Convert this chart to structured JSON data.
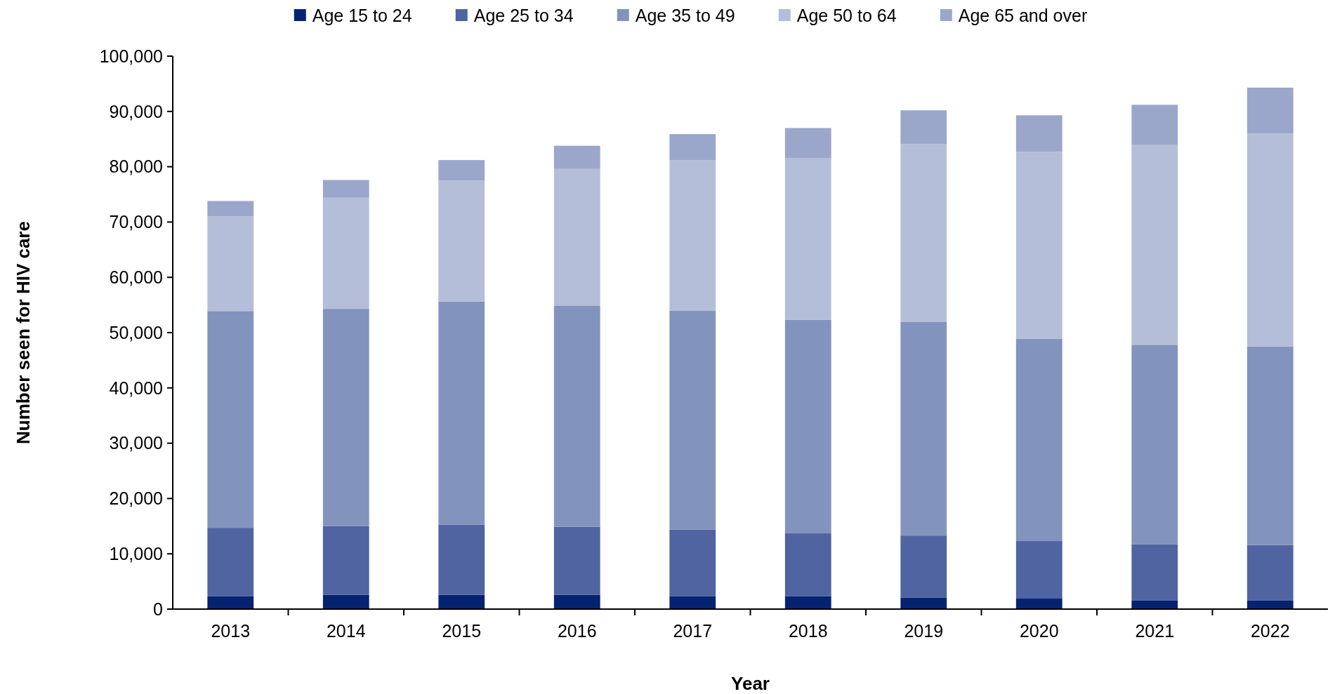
{
  "chart_data": {
    "type": "bar",
    "stacked": true,
    "xlabel": "Year",
    "ylabel": "Number seen for HIV care",
    "categories": [
      "2013",
      "2014",
      "2015",
      "2016",
      "2017",
      "2018",
      "2019",
      "2020",
      "2021",
      "2022"
    ],
    "series": [
      {
        "name": "Age 15 to 24",
        "color": "#052371",
        "values": [
          2300,
          2600,
          2600,
          2600,
          2300,
          2300,
          2100,
          1900,
          1600,
          1600
        ]
      },
      {
        "name": "Age 25 to 34",
        "color": "#4f64a0",
        "values": [
          12400,
          12400,
          12700,
          12300,
          12100,
          11400,
          11200,
          10400,
          10100,
          10000
        ]
      },
      {
        "name": "Age 35 to 49",
        "color": "#8294bd",
        "values": [
          39200,
          39300,
          40300,
          40000,
          39600,
          38600,
          38600,
          36600,
          36100,
          35900
        ]
      },
      {
        "name": "Age 50 to 64",
        "color": "#b4bed8",
        "values": [
          17100,
          20100,
          21900,
          24700,
          27200,
          29300,
          32200,
          33800,
          36200,
          38500
        ]
      },
      {
        "name": "Age 65 and over",
        "color": "#9aa7cb",
        "values": [
          2800,
          3200,
          3700,
          4200,
          4700,
          5400,
          6100,
          6600,
          7200,
          8300
        ]
      }
    ],
    "ylim": [
      0,
      100000
    ],
    "yticks": [
      {
        "value": 0,
        "label": "0"
      },
      {
        "value": 10000,
        "label": "10,000"
      },
      {
        "value": 20000,
        "label": "20,000"
      },
      {
        "value": 30000,
        "label": "30,000"
      },
      {
        "value": 40000,
        "label": "40,000"
      },
      {
        "value": 50000,
        "label": "50,000"
      },
      {
        "value": 60000,
        "label": "60,000"
      },
      {
        "value": 70000,
        "label": "70,000"
      },
      {
        "value": 80000,
        "label": "80,000"
      },
      {
        "value": 90000,
        "label": "90,000"
      },
      {
        "value": 100000,
        "label": "100,000"
      }
    ],
    "legend": "top",
    "grid": false
  }
}
